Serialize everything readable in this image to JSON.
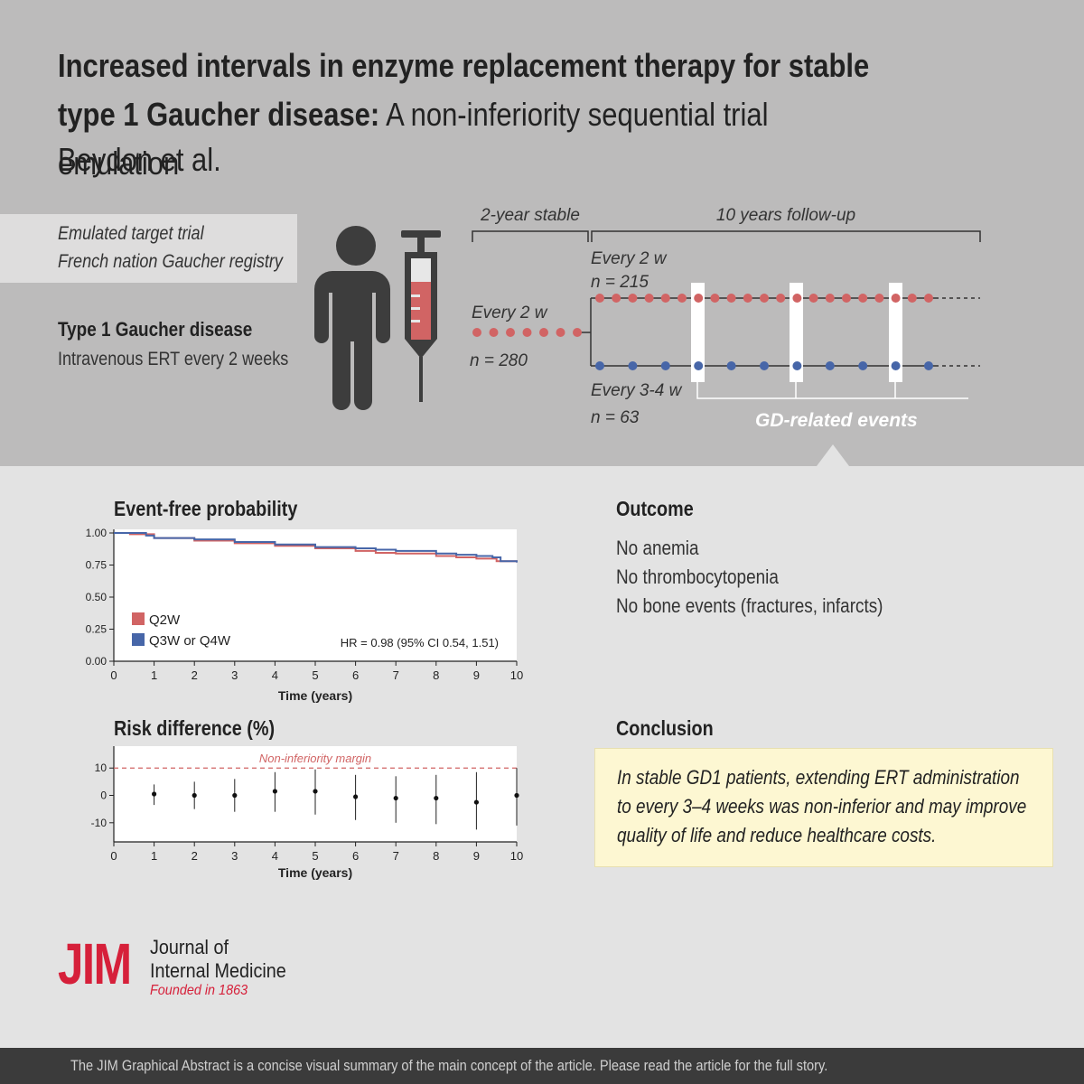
{
  "title": {
    "bold": "Increased intervals in enzyme replacement therapy for stable type 1 Gaucher disease:",
    "rest": " A non-inferiority sequential trial emulation",
    "authors": "Beydon et al."
  },
  "trial_box": {
    "line1": "Emulated target trial",
    "line2": "French nation Gaucher registry"
  },
  "disease": {
    "title": "Type 1 Gaucher disease",
    "subtitle": "Intravenous ERT every 2 weeks"
  },
  "timeline": {
    "stable_label": "2-year stable",
    "followup_label": "10 years follow-up",
    "baseline_label": "Every 2 w",
    "baseline_n": "n = 280",
    "arm1_label": "Every 2 w",
    "arm1_n": "n = 215",
    "arm2_label": "Every 3-4 w",
    "arm2_n": "n = 63",
    "events_label": "GD-related events",
    "colors": {
      "q2w": "#d16464",
      "q4w": "#4766a8"
    }
  },
  "icons": {
    "person": "person-icon",
    "syringe": "syringe-icon"
  },
  "km_chart": {
    "section_title": "Event-free probability",
    "chart_data": {
      "type": "line",
      "xlabel": "Time (years)",
      "xlim": [
        0,
        10
      ],
      "ylim": [
        0,
        1
      ],
      "x_ticks": [
        "0",
        "1",
        "2",
        "3",
        "4",
        "5",
        "6",
        "7",
        "8",
        "9",
        "10"
      ],
      "y_ticks": [
        "0.00",
        "0.25",
        "0.50",
        "0.75",
        "1.00"
      ],
      "series": [
        {
          "name": "Q2W",
          "color": "#d16464",
          "x": [
            0,
            0.4,
            1.0,
            2.0,
            3.0,
            4.0,
            5.0,
            6.0,
            6.5,
            7.0,
            8.0,
            8.5,
            9.0,
            9.5,
            10.0
          ],
          "y": [
            1.0,
            0.99,
            0.96,
            0.94,
            0.92,
            0.9,
            0.88,
            0.86,
            0.845,
            0.84,
            0.82,
            0.81,
            0.8,
            0.78,
            0.77
          ]
        },
        {
          "name": "Q3W or Q4W",
          "color": "#4766a8",
          "x": [
            0,
            0.2,
            0.8,
            1.0,
            2.0,
            3.0,
            4.0,
            5.0,
            6.0,
            6.5,
            7.0,
            8.0,
            8.5,
            9.0,
            9.4,
            9.6,
            10.0
          ],
          "y": [
            1.0,
            1.0,
            0.98,
            0.96,
            0.95,
            0.93,
            0.91,
            0.89,
            0.88,
            0.87,
            0.86,
            0.84,
            0.83,
            0.82,
            0.81,
            0.78,
            0.77
          ]
        }
      ],
      "annotation": "HR = 0.98 (95% CI 0.54, 1.51)",
      "legend_placement": "bottom-left"
    }
  },
  "rd_chart": {
    "section_title": "Risk difference (%)",
    "chart_data": {
      "type": "scatter",
      "xlabel": "Time (years)",
      "xlim": [
        0,
        10
      ],
      "ylim": [
        -17,
        18
      ],
      "x_ticks": [
        "0",
        "1",
        "2",
        "3",
        "4",
        "5",
        "6",
        "7",
        "8",
        "9",
        "10"
      ],
      "y_ticks": [
        "10",
        "0",
        "-10"
      ],
      "reference_line": {
        "y": 10,
        "label": "Non-inferiority margin",
        "color": "#d16464"
      },
      "x": [
        1,
        2,
        3,
        4,
        5,
        6,
        7,
        8,
        9,
        10
      ],
      "y": [
        0.5,
        0,
        0,
        1.5,
        1.5,
        -0.5,
        -1,
        -1,
        -2.5,
        0
      ],
      "lower": [
        -3.5,
        -5,
        -6,
        -6,
        -7,
        -9,
        -10,
        -10.5,
        -12.5,
        -11
      ],
      "upper": [
        4,
        5,
        6,
        8.5,
        9.5,
        7.5,
        7,
        7.5,
        8.5,
        10
      ]
    }
  },
  "outcome": {
    "title": "Outcome",
    "items": [
      "No anemia",
      "No thrombocytopenia",
      "No bone events (fractures, infarcts)"
    ]
  },
  "conclusion": {
    "title": "Conclusion",
    "text": "In stable GD1 patients, extending ERT administration to every 3–4 weeks was non-inferior and may improve quality of life and reduce healthcare costs."
  },
  "journal": {
    "logo": "JIM",
    "name_line1": "Journal of",
    "name_line2": "Internal Medicine",
    "founded": "Founded in 1863"
  },
  "footer": "The JIM Graphical Abstract is a concise visual summary of the main concept of the article. Please read the article for the full story."
}
